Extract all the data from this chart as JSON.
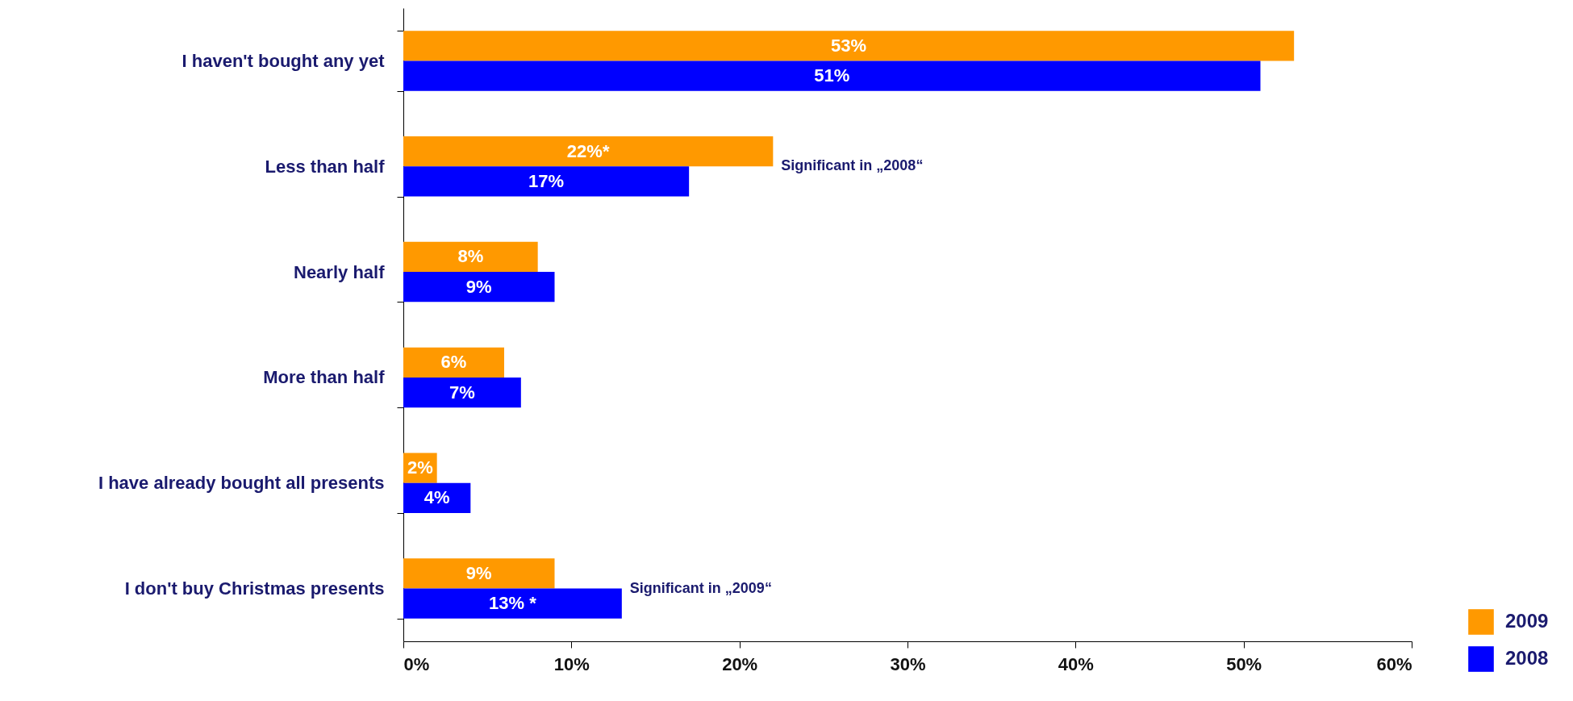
{
  "chart_data": {
    "type": "bar",
    "orientation": "horizontal",
    "categories": [
      "I haven't bought any yet",
      "Less than half",
      "Nearly half ",
      "More than half ",
      "I have already bought all presents ",
      "I don't buy Christmas presents"
    ],
    "series": [
      {
        "name": "2009",
        "color": "#ff9900",
        "values": [
          53,
          22,
          8,
          6,
          2,
          9
        ],
        "value_labels": [
          "53%",
          "22%*",
          "8%",
          "6%",
          "2%",
          "9%"
        ]
      },
      {
        "name": "2008",
        "color": "#0000ff",
        "values": [
          51,
          17,
          9,
          7,
          4,
          13
        ],
        "value_labels": [
          "51%",
          "17%",
          "9%",
          "7%",
          "4%",
          "13% *"
        ]
      }
    ],
    "xlim": [
      0,
      60
    ],
    "xticks": [
      {
        "value": 0,
        "label": "0%"
      },
      {
        "value": 10,
        "label": "10%"
      },
      {
        "value": 20,
        "label": "20%"
      },
      {
        "value": 30,
        "label": "30%"
      },
      {
        "value": 40,
        "label": "40%"
      },
      {
        "value": 50,
        "label": "50%"
      },
      {
        "value": 60,
        "label": "60%"
      }
    ],
    "annotations": [
      {
        "text": "Significant in „2008“",
        "x": 22,
        "y": "Less than half"
      },
      {
        "text": "Significant in „2009“",
        "x": 13,
        "y": "I don't buy Christmas presents"
      }
    ],
    "grid": false,
    "legend": "bottom right"
  }
}
